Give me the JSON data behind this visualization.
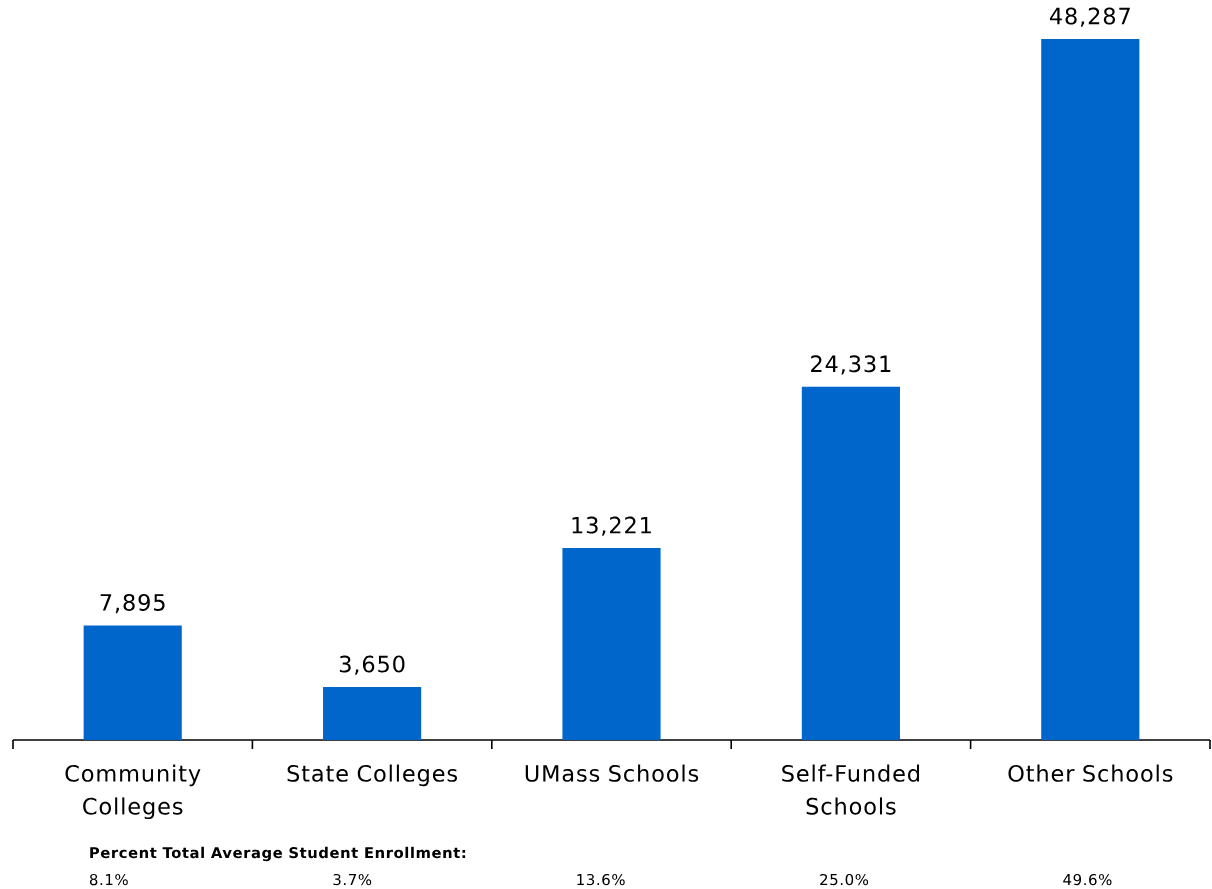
{
  "chart_data": {
    "type": "bar",
    "categories": [
      "Community Colleges",
      "State Colleges",
      "UMass Schools",
      "Self-Funded Schools",
      "Other Schools"
    ],
    "values": [
      7895,
      3650,
      13221,
      24331,
      48287
    ],
    "value_labels": [
      "7,895",
      "3,650",
      "13,221",
      "24,331",
      "48,287"
    ],
    "color": "#0066cc",
    "annotations": [
      "Percent Total Average Student Enrollment:",
      "8.1%",
      "3.7%",
      "13.6%",
      "25.0%",
      "49.6%"
    ]
  }
}
